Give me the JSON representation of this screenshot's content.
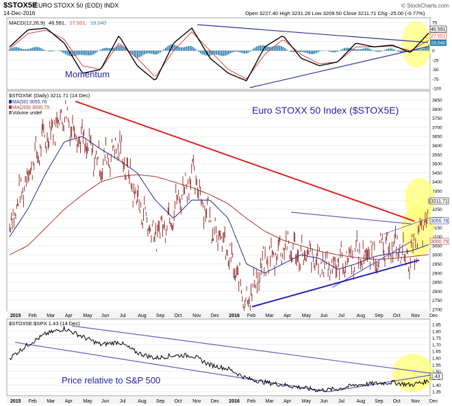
{
  "header": {
    "symbol": "$STOX5E",
    "name": "EURO STOXX 50 (EOD) INDX",
    "date": "14-Dec-2016",
    "quote": "Open 3227.40  High 3231.26  Low 3209.50  Close 3211.71  Chg -25.00 (-0.77%)",
    "brand": "© StockCharts.com"
  },
  "macd_panel": {
    "label": "MACD(12,26,9) 46.591, 27.551, 19.040",
    "label_macd": "MACD(12,26,9)",
    "label_v1": "46.591,",
    "label_v2": "27.551,",
    "label_v3": "19.040",
    "annotation": "Momentum",
    "ticks": [
      "75",
      "50",
      "25",
      "0",
      "-25",
      "-50",
      "-75",
      "-100"
    ],
    "tag_macd": "46.591",
    "tag_signal": "27.551",
    "tag_hist": "19.040"
  },
  "price_panel": {
    "label_symbol": "$STOX5E (Daily) 3211.71 (14 Dec)",
    "legend_ma50": "MA(50) 3055.76",
    "legend_ma200": "MA(200) 3000.75",
    "legend_volume": "Volume undef",
    "annotation": "Euro STOXX 50 Index ($STOX5E)",
    "ticks": [
      "3850",
      "3800",
      "3750",
      "3700",
      "3650",
      "3600",
      "3550",
      "3500",
      "3450",
      "3400",
      "3350",
      "3300",
      "3250",
      "3200",
      "3150",
      "3100",
      "3050",
      "3000",
      "2950",
      "2900",
      "2850",
      "2800",
      "2750",
      "2700"
    ],
    "tag_close": "3211.71",
    "tag_ma50": "3055.76",
    "tag_ma200": "3000.75"
  },
  "ratio_panel": {
    "label": "$STOX5E:$SPX 1.43 (14 Dec)",
    "annotation": "Price relative to S&P 500",
    "ticks": [
      "1.85",
      "1.80",
      "1.75",
      "1.70",
      "1.65",
      "1.60",
      "1.55",
      "1.50",
      "1.45",
      "1.40",
      "1.35"
    ],
    "tag_value": "1.43"
  },
  "x_axis": {
    "labels": [
      "2015",
      "Feb",
      "Mar",
      "Apr",
      "May",
      "Jun",
      "Jul",
      "Aug",
      "Sep",
      "Oct",
      "Nov",
      "Dec",
      "2016",
      "Feb",
      "Mar",
      "Apr",
      "May",
      "Jun",
      "Jul",
      "Aug",
      "Sep",
      "Oct",
      "Nov",
      "Dec"
    ]
  },
  "colors": {
    "price": "#8b1a1a",
    "ma50": "#1f2a8c",
    "ma200": "#b03030",
    "trend_red": "#e02020",
    "trend_blue": "#2020b0",
    "channel": "#6060c0",
    "highlight": "#ffff7a",
    "hist": "#2a7fb0",
    "macd_signal": "#e04040",
    "annotation": "#2222aa"
  },
  "chart_data": [
    {
      "type": "line",
      "title": "Euro STOXX 50 Index ($STOX5E)",
      "x": [
        "2015-01",
        "2015-02",
        "2015-03",
        "2015-04",
        "2015-05",
        "2015-06",
        "2015-07",
        "2015-08",
        "2015-09",
        "2015-10",
        "2015-11",
        "2015-12",
        "2016-01",
        "2016-02",
        "2016-03",
        "2016-04",
        "2016-05",
        "2016-06",
        "2016-07",
        "2016-08",
        "2016-09",
        "2016-10",
        "2016-11",
        "2016-12"
      ],
      "series": [
        {
          "name": "$STOX5E",
          "values": [
            3150,
            3450,
            3650,
            3780,
            3620,
            3500,
            3600,
            3300,
            3100,
            3250,
            3450,
            3200,
            3000,
            2750,
            2950,
            3050,
            3000,
            2950,
            2950,
            3000,
            3000,
            3050,
            2980,
            3210
          ]
        },
        {
          "name": "MA(50)",
          "values": [
            3100,
            3250,
            3450,
            3620,
            3650,
            3580,
            3520,
            3450,
            3300,
            3200,
            3300,
            3300,
            3200,
            2950,
            2900,
            2950,
            3000,
            2980,
            2920,
            2950,
            2990,
            3010,
            3020,
            3056
          ]
        },
        {
          "name": "MA(200)",
          "values": [
            3000,
            3050,
            3150,
            3250,
            3330,
            3400,
            3430,
            3440,
            3430,
            3400,
            3370,
            3330,
            3280,
            3200,
            3130,
            3080,
            3050,
            3020,
            3000,
            2985,
            2975,
            2980,
            2990,
            3001
          ]
        }
      ],
      "ylim": [
        2700,
        3850
      ]
    },
    {
      "type": "line",
      "title": "MACD(12,26,9)",
      "series": [
        {
          "name": "MACD",
          "values": [
            10,
            55,
            60,
            20,
            -60,
            -50,
            40,
            -40,
            -80,
            20,
            60,
            -20,
            -60,
            -80,
            10,
            40,
            -20,
            -40,
            -30,
            20,
            10,
            15,
            -5,
            46.591
          ]
        },
        {
          "name": "Signal",
          "values": [
            5,
            45,
            55,
            30,
            -40,
            -50,
            20,
            -20,
            -70,
            0,
            50,
            0,
            -50,
            -75,
            -10,
            30,
            -10,
            -35,
            -30,
            10,
            10,
            12,
            0,
            27.551
          ]
        }
      ],
      "ylim": [
        -100,
        80
      ]
    },
    {
      "type": "line",
      "title": "$STOX5E:$SPX",
      "series": [
        {
          "name": "$STOX5E:$SPX",
          "values": [
            1.6,
            1.7,
            1.78,
            1.82,
            1.76,
            1.7,
            1.72,
            1.64,
            1.6,
            1.62,
            1.62,
            1.55,
            1.52,
            1.45,
            1.42,
            1.4,
            1.38,
            1.36,
            1.37,
            1.4,
            1.41,
            1.42,
            1.4,
            1.43
          ]
        }
      ],
      "ylim": [
        1.33,
        1.86
      ]
    }
  ]
}
